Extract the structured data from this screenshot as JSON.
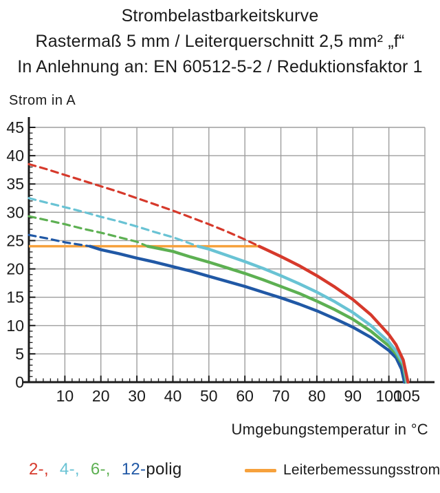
{
  "header": {
    "lines": [
      "Strombelastbarkeitskurve",
      "Rastermaß 5 mm / Leiterquerschnitt 2,5 mm² „f“",
      "In Anlehnung an: EN 60512-5-2 / Reduktionsfaktor 1"
    ]
  },
  "colors": {
    "text": "#1b1b1b",
    "grid": "#9d9d9d",
    "axis": "#1b1b1b"
  },
  "legend": {
    "poles_suffix": "polig"
  },
  "chart_data": {
    "type": "line",
    "title": "Strombelastbarkeitskurve",
    "subtitle": "Rastermaß 5 mm / Leiterquerschnitt 2,5 mm² „f“ / In Anlehnung an: EN 60512-5-2 / Reduktionsfaktor 1",
    "xlabel": "Umgebungstemperatur in °C",
    "ylabel": "Strom in A",
    "xlim": [
      0,
      110
    ],
    "ylim": [
      0,
      45
    ],
    "x_major_ticks": [
      10,
      20,
      30,
      40,
      50,
      60,
      70,
      80,
      90,
      100,
      105
    ],
    "x_minor_step": 2,
    "y_major_ticks": [
      0,
      5,
      10,
      15,
      20,
      25,
      30,
      35,
      40,
      45
    ],
    "y_minor_step": 1,
    "grid": {
      "x_step": 10,
      "y_step": 5,
      "on": true
    },
    "rated_line": {
      "label": "Leiterbemessungsstrom",
      "value": 24,
      "t_start": 0,
      "t_end": 64,
      "color": "#f6a13c"
    },
    "series_note": "dashed above rated current (24 A), solid below; x = temperature °C, y = current A",
    "series": [
      {
        "name": "2-polig",
        "legend_label": "2-,",
        "color": "#d6392b",
        "solid_from": 64,
        "points": [
          [
            0,
            38.5
          ],
          [
            5,
            37.6
          ],
          [
            10,
            36.6
          ],
          [
            15,
            35.6
          ],
          [
            20,
            34.6
          ],
          [
            25,
            33.6
          ],
          [
            30,
            32.5
          ],
          [
            35,
            31.4
          ],
          [
            40,
            30.3
          ],
          [
            45,
            29.1
          ],
          [
            50,
            27.9
          ],
          [
            55,
            26.6
          ],
          [
            60,
            25.2
          ],
          [
            64,
            24
          ],
          [
            70,
            22.2
          ],
          [
            75,
            20.6
          ],
          [
            80,
            18.8
          ],
          [
            85,
            16.8
          ],
          [
            90,
            14.6
          ],
          [
            95,
            11.9
          ],
          [
            100,
            8.4
          ],
          [
            102,
            6.6
          ],
          [
            104,
            3.9
          ],
          [
            105.3,
            0
          ]
        ]
      },
      {
        "name": "4-polig",
        "legend_label": "4-,",
        "color": "#69c3d4",
        "solid_from": 47,
        "points": [
          [
            0,
            32.5
          ],
          [
            5,
            31.7
          ],
          [
            10,
            30.9
          ],
          [
            15,
            30.1
          ],
          [
            20,
            29.2
          ],
          [
            25,
            28.4
          ],
          [
            30,
            27.5
          ],
          [
            35,
            26.5
          ],
          [
            40,
            25.6
          ],
          [
            47,
            24
          ],
          [
            50,
            23.5
          ],
          [
            55,
            22.4
          ],
          [
            60,
            21.3
          ],
          [
            65,
            20.1
          ],
          [
            70,
            18.8
          ],
          [
            75,
            17.4
          ],
          [
            80,
            15.9
          ],
          [
            85,
            14.2
          ],
          [
            90,
            12.3
          ],
          [
            95,
            10.0
          ],
          [
            100,
            7.1
          ],
          [
            102,
            5.5
          ],
          [
            104,
            3.3
          ],
          [
            105,
            0
          ]
        ]
      },
      {
        "name": "6-polig",
        "legend_label": "6-,",
        "color": "#5db052",
        "solid_from": 33,
        "points": [
          [
            0,
            29.3
          ],
          [
            5,
            28.6
          ],
          [
            10,
            27.9
          ],
          [
            15,
            27.1
          ],
          [
            20,
            26.4
          ],
          [
            25,
            25.6
          ],
          [
            30,
            24.8
          ],
          [
            33,
            24
          ],
          [
            40,
            23.1
          ],
          [
            45,
            22.1
          ],
          [
            50,
            21.2
          ],
          [
            55,
            20.2
          ],
          [
            60,
            19.2
          ],
          [
            65,
            18.1
          ],
          [
            70,
            16.9
          ],
          [
            75,
            15.7
          ],
          [
            80,
            14.3
          ],
          [
            85,
            12.8
          ],
          [
            90,
            11.1
          ],
          [
            95,
            9.0
          ],
          [
            100,
            6.4
          ],
          [
            102,
            5.0
          ],
          [
            104,
            2.9
          ],
          [
            104.8,
            0
          ]
        ]
      },
      {
        "name": "12-polig",
        "legend_label": "12-",
        "color": "#2058a5",
        "solid_from": 17,
        "points": [
          [
            0,
            26.0
          ],
          [
            5,
            25.4
          ],
          [
            10,
            24.7
          ],
          [
            17,
            24
          ],
          [
            20,
            23.4
          ],
          [
            25,
            22.7
          ],
          [
            30,
            21.9
          ],
          [
            35,
            21.2
          ],
          [
            40,
            20.4
          ],
          [
            45,
            19.6
          ],
          [
            50,
            18.7
          ],
          [
            55,
            17.8
          ],
          [
            60,
            16.9
          ],
          [
            65,
            15.9
          ],
          [
            70,
            14.9
          ],
          [
            75,
            13.8
          ],
          [
            80,
            12.6
          ],
          [
            85,
            11.2
          ],
          [
            90,
            9.7
          ],
          [
            95,
            7.9
          ],
          [
            100,
            5.6
          ],
          [
            102,
            4.3
          ],
          [
            103.5,
            2.3
          ],
          [
            104.3,
            0
          ]
        ]
      }
    ]
  }
}
